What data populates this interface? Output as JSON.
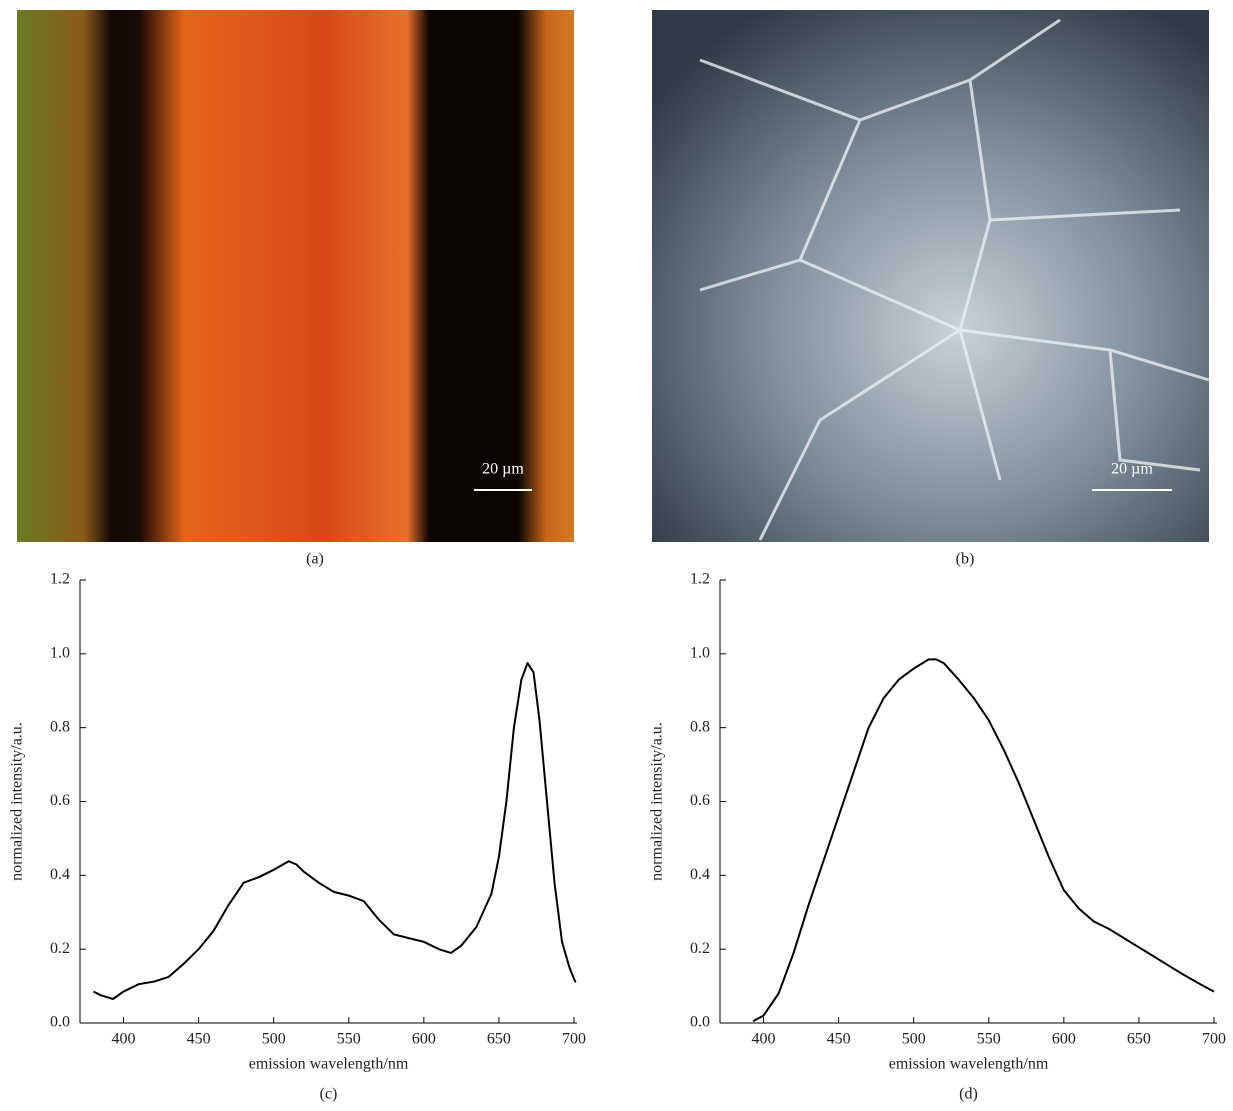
{
  "images": [
    {
      "caption": "(a)",
      "scale_label": "20 µm"
    },
    {
      "caption": "(b)",
      "scale_label": "20 µm"
    }
  ],
  "chart_data": [
    {
      "type": "line",
      "caption": "(c)",
      "x_label": "emission wavelength/nm",
      "y_label": "normalized intensity/a.u.",
      "xlim": [
        371,
        702
      ],
      "ylim": [
        0,
        1.2
      ],
      "xticks": [
        400,
        450,
        500,
        550,
        600,
        650,
        700
      ],
      "yticks": [
        {
          "value": 0,
          "label": "0.0"
        },
        0.2,
        0.4,
        0.6,
        0.8,
        {
          "value": 1,
          "label": "1.0"
        },
        1.2
      ],
      "series": [
        {
          "color": "#000000",
          "x": [
            380,
            385,
            393,
            400,
            410,
            420,
            430,
            440,
            450,
            460,
            470,
            480,
            490,
            500,
            510,
            515,
            520,
            530,
            540,
            550,
            560,
            570,
            580,
            590,
            600,
            610,
            618,
            625,
            635,
            645,
            650,
            655,
            660,
            665,
            669,
            673,
            677,
            682,
            687,
            692,
            697,
            701
          ],
          "values": [
            0.085,
            0.075,
            0.065,
            0.085,
            0.105,
            0.112,
            0.125,
            0.16,
            0.2,
            0.25,
            0.32,
            0.38,
            0.395,
            0.415,
            0.438,
            0.43,
            0.41,
            0.38,
            0.355,
            0.345,
            0.33,
            0.28,
            0.24,
            0.23,
            0.22,
            0.2,
            0.19,
            0.21,
            0.26,
            0.35,
            0.45,
            0.6,
            0.8,
            0.93,
            0.975,
            0.95,
            0.82,
            0.6,
            0.38,
            0.22,
            0.15,
            0.11
          ]
        }
      ]
    },
    {
      "type": "line",
      "caption": "(d)",
      "x_label": "emission wavelength/nm",
      "y_label": "normalized intensity/a.u.",
      "xlim": [
        371,
        702
      ],
      "ylim": [
        0,
        1.2
      ],
      "xticks": [
        400,
        450,
        500,
        550,
        600,
        650,
        700
      ],
      "yticks": [
        {
          "value": 0,
          "label": "0.0"
        },
        0.2,
        0.4,
        0.6,
        0.8,
        {
          "value": 1,
          "label": "1.0"
        },
        1.2
      ],
      "series": [
        {
          "color": "#000000",
          "x": [
            393,
            400,
            410,
            420,
            430,
            440,
            450,
            460,
            470,
            480,
            490,
            500,
            510,
            515,
            520,
            530,
            540,
            550,
            560,
            570,
            580,
            590,
            600,
            610,
            620,
            630,
            640,
            650,
            660,
            670,
            680,
            690,
            700
          ],
          "values": [
            0.005,
            0.02,
            0.08,
            0.19,
            0.32,
            0.44,
            0.56,
            0.68,
            0.8,
            0.88,
            0.93,
            0.96,
            0.985,
            0.985,
            0.975,
            0.93,
            0.88,
            0.82,
            0.74,
            0.65,
            0.55,
            0.45,
            0.36,
            0.31,
            0.275,
            0.255,
            0.23,
            0.205,
            0.18,
            0.155,
            0.13,
            0.107,
            0.085
          ]
        }
      ]
    }
  ]
}
